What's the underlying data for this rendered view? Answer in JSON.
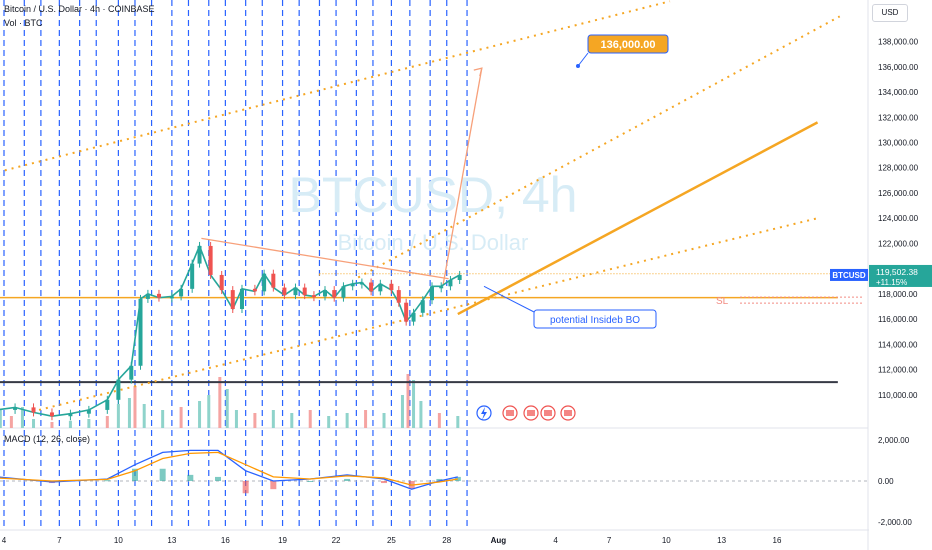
{
  "header": {
    "title": "Bitcoin / U.S. Dollar · 4h · COINBASE",
    "volume": "Vol · BTC",
    "macd": "MACD (12, 26, close)"
  },
  "currency_button": "USD",
  "watermark": {
    "symbol": "BTCUSD, 4h",
    "name": "Bitcoin / U.S. Dollar"
  },
  "annotations": {
    "target_label": "136,000.00",
    "stop_loss": "SL",
    "callout": "potential Insideb BO",
    "last_price_tag": "BTCUSD",
    "last_price": "119,502.38",
    "last_change": "+11.15%"
  },
  "colors": {
    "accent_orange": "#f5a623",
    "blue_lines": "#2962ff",
    "up": "#26a69a",
    "down": "#ef5350",
    "macd_line": "#2962ff",
    "signal_line": "#ff9800",
    "callout_border": "#2962ff"
  },
  "chart_data": [
    {
      "type": "candlestick",
      "symbol": "BTCUSD",
      "timeframe": "4h",
      "x_ticks": [
        "4",
        "7",
        "10",
        "13",
        "16",
        "19",
        "22",
        "25",
        "28",
        "Aug",
        "4",
        "7",
        "10",
        "13",
        "16"
      ],
      "y_ticks": [
        "110,000.00",
        "112,000.00",
        "114,000.00",
        "116,000.00",
        "118,000.00",
        "120,000.00",
        "122,000.00",
        "124,000.00",
        "126,000.00",
        "128,000.00",
        "130,000.00",
        "132,000.00",
        "134,000.00",
        "136,000.00",
        "138,000.00"
      ],
      "ylim": [
        108000,
        141300
      ],
      "close_path": [
        [
          3,
          108800
        ],
        [
          4,
          109000
        ],
        [
          5,
          108600
        ],
        [
          6,
          108300
        ],
        [
          7,
          108500
        ],
        [
          8,
          108800
        ],
        [
          9,
          109600
        ],
        [
          9.6,
          111200
        ],
        [
          10.3,
          112300
        ],
        [
          10.8,
          117600
        ],
        [
          11.2,
          118000
        ],
        [
          11.8,
          117700
        ],
        [
          12.5,
          117800
        ],
        [
          13,
          118400
        ],
        [
          13.6,
          120400
        ],
        [
          14,
          121800
        ],
        [
          14.6,
          119500
        ],
        [
          15.2,
          118300
        ],
        [
          15.8,
          116800
        ],
        [
          16.3,
          118400
        ],
        [
          17,
          118200
        ],
        [
          17.5,
          119600
        ],
        [
          18,
          118500
        ],
        [
          18.6,
          117900
        ],
        [
          19.2,
          118500
        ],
        [
          19.7,
          117900
        ],
        [
          20.2,
          117800
        ],
        [
          20.8,
          118300
        ],
        [
          21.3,
          117700
        ],
        [
          21.8,
          118600
        ],
        [
          22.3,
          118800
        ],
        [
          22.8,
          118900
        ],
        [
          23.3,
          118200
        ],
        [
          23.8,
          118800
        ],
        [
          24.4,
          118300
        ],
        [
          24.8,
          117300
        ],
        [
          25.2,
          115800
        ],
        [
          25.6,
          116500
        ],
        [
          26.1,
          117500
        ],
        [
          26.6,
          118600
        ],
        [
          27.1,
          118600
        ],
        [
          27.6,
          119100
        ],
        [
          28.1,
          119500
        ]
      ],
      "volume_bars": [
        [
          3.2,
          0.3
        ],
        [
          3.8,
          0.2
        ],
        [
          4.4,
          0.35
        ],
        [
          5,
          0.15
        ],
        [
          6,
          0.1
        ],
        [
          7,
          0.12
        ],
        [
          8,
          0.15
        ],
        [
          9,
          0.2
        ],
        [
          9.6,
          0.4
        ],
        [
          10.2,
          0.5
        ],
        [
          10.5,
          0.7
        ],
        [
          11,
          0.4
        ],
        [
          12,
          0.3
        ],
        [
          13,
          0.35
        ],
        [
          14,
          0.45
        ],
        [
          14.5,
          0.55
        ],
        [
          15.1,
          0.85
        ],
        [
          15.5,
          0.65
        ],
        [
          16,
          0.3
        ],
        [
          17,
          0.25
        ],
        [
          18,
          0.3
        ],
        [
          19,
          0.25
        ],
        [
          20,
          0.3
        ],
        [
          21,
          0.2
        ],
        [
          22,
          0.25
        ],
        [
          23,
          0.3
        ],
        [
          24,
          0.25
        ],
        [
          25,
          0.55
        ],
        [
          25.3,
          0.9
        ],
        [
          25.6,
          0.8
        ],
        [
          26,
          0.45
        ],
        [
          27,
          0.25
        ],
        [
          28,
          0.2
        ]
      ],
      "vertical_lines_x": [
        3.4,
        4.5,
        5.4,
        6.4,
        7.5,
        8.4,
        9.6,
        10.5,
        11.4,
        12.5,
        13.4,
        14.5,
        15.4,
        16.5,
        17.4,
        18.5,
        19.4,
        20.5,
        21.4,
        22.5,
        23.4,
        24.4,
        25.4,
        26.5,
        27.4,
        28.5
      ],
      "trend_lines": {
        "upper_dotted": [
          [
            0.5,
            126700
          ],
          [
            39.5,
            141200
          ]
        ],
        "middle_dotted": [
          [
            22.6,
            119300
          ],
          [
            48.7,
            140000
          ]
        ],
        "lower_dotted": [
          [
            5.3,
            108800
          ],
          [
            47.5,
            124000
          ]
        ],
        "solid_up": [
          [
            28,
            116400
          ],
          [
            47.5,
            131600
          ]
        ],
        "triangle_top": [
          [
            14.1,
            122400
          ],
          [
            27.5,
            119200
          ]
        ],
        "horizontal_support": [
          [
            3.1,
            117700
          ],
          [
            48.6,
            117700
          ]
        ],
        "horizontal_current": [
          [
            20.5,
            119600
          ],
          [
            48.6,
            119600
          ]
        ],
        "black_support": [
          [
            0,
            111000
          ],
          [
            48.6,
            111000
          ]
        ],
        "projection": [
          [
            27.2,
            118700
          ],
          [
            29.3,
            135900
          ]
        ],
        "sl_level": 117500,
        "target_level": 136000
      }
    },
    {
      "type": "line",
      "title": "MACD (12, 26, close)",
      "y_ticks": [
        "2,000.00",
        "0.00",
        "-2,000.00"
      ],
      "ylim": [
        -2400,
        2400
      ],
      "series": [
        {
          "values": [
            [
              3,
              200
            ],
            [
              6,
              -50
            ],
            [
              9,
              100
            ],
            [
              10.5,
              800
            ],
            [
              12,
              1400
            ],
            [
              13.5,
              1500
            ],
            [
              15,
              1500
            ],
            [
              16.5,
              500
            ],
            [
              18,
              0
            ],
            [
              20,
              100
            ],
            [
              22,
              300
            ],
            [
              24,
              100
            ],
            [
              25.5,
              -400
            ],
            [
              27,
              0
            ],
            [
              28,
              200
            ]
          ]
        },
        {
          "values": [
            [
              3,
              150
            ],
            [
              6,
              0
            ],
            [
              9,
              80
            ],
            [
              10.5,
              500
            ],
            [
              12,
              1100
            ],
            [
              13.5,
              1350
            ],
            [
              15,
              1400
            ],
            [
              16.5,
              800
            ],
            [
              18,
              200
            ],
            [
              20,
              100
            ],
            [
              22,
              250
            ],
            [
              24,
              150
            ],
            [
              25.5,
              -200
            ],
            [
              27,
              -50
            ],
            [
              28,
              100
            ]
          ]
        }
      ]
    }
  ]
}
